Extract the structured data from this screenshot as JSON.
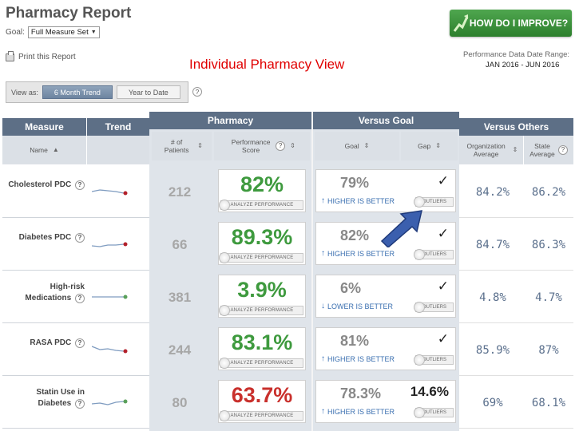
{
  "header": {
    "title": "Pharmacy Report",
    "goal_label": "Goal:",
    "goal_value": "Full Measure Set",
    "print_label": "Print this Report",
    "improve_button": "HOW DO I IMPROVE?",
    "overlay_title": "Individual Pharmacy View",
    "date_range_label": "Performance Data Date Range:",
    "date_range_value": "JAN 2016 - JUN 2016"
  },
  "view_as": {
    "label": "View as:",
    "options": [
      "6 Month Trend",
      "Year to Date"
    ],
    "selected": "6 Month Trend"
  },
  "table": {
    "group_headers": {
      "measure": "Measure",
      "trend": "Trend",
      "pharmacy": "Pharmacy",
      "versus_goal": "Versus Goal",
      "versus_others": "Versus Others"
    },
    "sub_headers": {
      "name": "Name",
      "patients": "# of Patients",
      "performance": "Performance Score",
      "goal": "Goal",
      "gap": "Gap",
      "org_avg": "Organization Average",
      "state_avg": "State Average"
    },
    "analyze_label": "ANALYZE PERFORMANCE",
    "outliers_label": "OUTLIERS",
    "rows": [
      {
        "name": "Cholesterol PDC",
        "patients": "212",
        "score": "82%",
        "score_color": "#3e9a3e",
        "goal": "79%",
        "direction": "HIGHER IS BETTER",
        "gap": "✓",
        "org_avg": "84.2%",
        "state_avg": "86.2%",
        "trend_color": "#b3202a"
      },
      {
        "name": "Diabetes PDC",
        "patients": "66",
        "score": "89.3%",
        "score_color": "#3e9a3e",
        "goal": "82%",
        "direction": "HIGHER IS BETTER",
        "gap": "✓",
        "org_avg": "84.7%",
        "state_avg": "86.3%",
        "trend_color": "#b3202a"
      },
      {
        "name": "High-risk Medications",
        "patients": "381",
        "score": "3.9%",
        "score_color": "#3e9a3e",
        "goal": "6%",
        "direction": "LOWER IS BETTER",
        "gap": "✓",
        "org_avg": "4.8%",
        "state_avg": "4.7%",
        "trend_color": "#5aa05a"
      },
      {
        "name": "RASA PDC",
        "patients": "244",
        "score": "83.1%",
        "score_color": "#3e9a3e",
        "goal": "81%",
        "direction": "HIGHER IS BETTER",
        "gap": "✓",
        "org_avg": "85.9%",
        "state_avg": "87%",
        "trend_color": "#b3202a"
      },
      {
        "name": "Statin Use in Diabetes",
        "patients": "80",
        "score": "63.7%",
        "score_color": "#c9302c",
        "goal": "78.3%",
        "direction": "HIGHER IS BETTER",
        "gap": "14.6%",
        "org_avg": "69%",
        "state_avg": "68.1%",
        "trend_color": "#5aa05a"
      }
    ]
  }
}
